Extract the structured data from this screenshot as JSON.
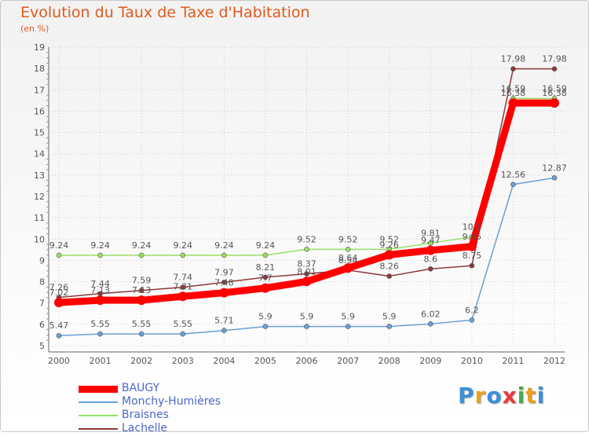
{
  "chart_data": {
    "type": "line",
    "title": "Evolution du Taux de Taxe d'Habitation",
    "ylabel": "(en %)",
    "x": [
      "2000",
      "2001",
      "2002",
      "2003",
      "2004",
      "2005",
      "2006",
      "2007",
      "2008",
      "2009",
      "2010",
      "2011",
      "2012"
    ],
    "ylim": [
      5,
      19
    ],
    "yticks": [
      "5",
      "6",
      "7",
      "8",
      "9",
      "10",
      "11",
      "12",
      "13",
      "14",
      "15",
      "16",
      "17",
      "18",
      "19"
    ],
    "grid": true,
    "legend_position": "bottom-left",
    "series": [
      {
        "name": "BAUGY",
        "color": "#ff0000",
        "values": [
          7.02,
          7.13,
          7.13,
          7.31,
          7.48,
          7.7,
          8.01,
          8.64,
          9.26,
          9.47,
          9.65,
          16.38,
          16.38
        ],
        "labels": [
          "7.02",
          "7.13",
          "7.13",
          "7.31",
          "7.48",
          "7.7",
          "8.01",
          "8.64",
          "9.26",
          "9.47",
          "9.65",
          "16.38",
          "16.38"
        ]
      },
      {
        "name": "Monchy-Humières",
        "color": "#6a9fd4",
        "values": [
          5.47,
          5.55,
          5.55,
          5.55,
          5.71,
          5.9,
          5.9,
          5.9,
          5.9,
          6.02,
          6.2,
          12.56,
          12.87
        ],
        "labels": [
          "5.47",
          "5.55",
          "5.55",
          "5.55",
          "5.71",
          "5.9",
          "5.9",
          "5.9",
          "5.9",
          "6.02",
          "6.2",
          "12.56",
          "12.87"
        ]
      },
      {
        "name": "Braisnes",
        "color": "#99e066",
        "values": [
          9.24,
          9.24,
          9.24,
          9.24,
          9.24,
          9.24,
          9.52,
          9.52,
          9.52,
          9.81,
          10.1,
          16.59,
          16.59
        ],
        "labels": [
          "9.24",
          "9.24",
          "9.24",
          "9.24",
          "9.24",
          "9.24",
          "9.52",
          "9.52",
          "9.52",
          "9.81",
          "10.1",
          "16.59",
          "16.59"
        ]
      },
      {
        "name": "Lachelle",
        "color": "#8b3a3a",
        "values": [
          7.26,
          7.44,
          7.59,
          7.74,
          7.97,
          8.21,
          8.37,
          8.54,
          8.26,
          8.6,
          8.75,
          17.98,
          17.98
        ],
        "labels": [
          "7.26",
          "7.44",
          "7.59",
          "7.74",
          "7.97",
          "8.21",
          "8.37",
          "8.54",
          "8.26",
          "8.6",
          "8.75",
          "17.98",
          "17.98"
        ]
      }
    ]
  },
  "logo": {
    "letters": [
      "P",
      "r",
      "o",
      "x",
      "i",
      "t",
      "i"
    ],
    "colors": [
      "#3a8fd8",
      "#e8a020",
      "#3a8fd8",
      "#e83a3a",
      "#4aa84a",
      "#e8a020",
      "#3a8fd8"
    ]
  }
}
